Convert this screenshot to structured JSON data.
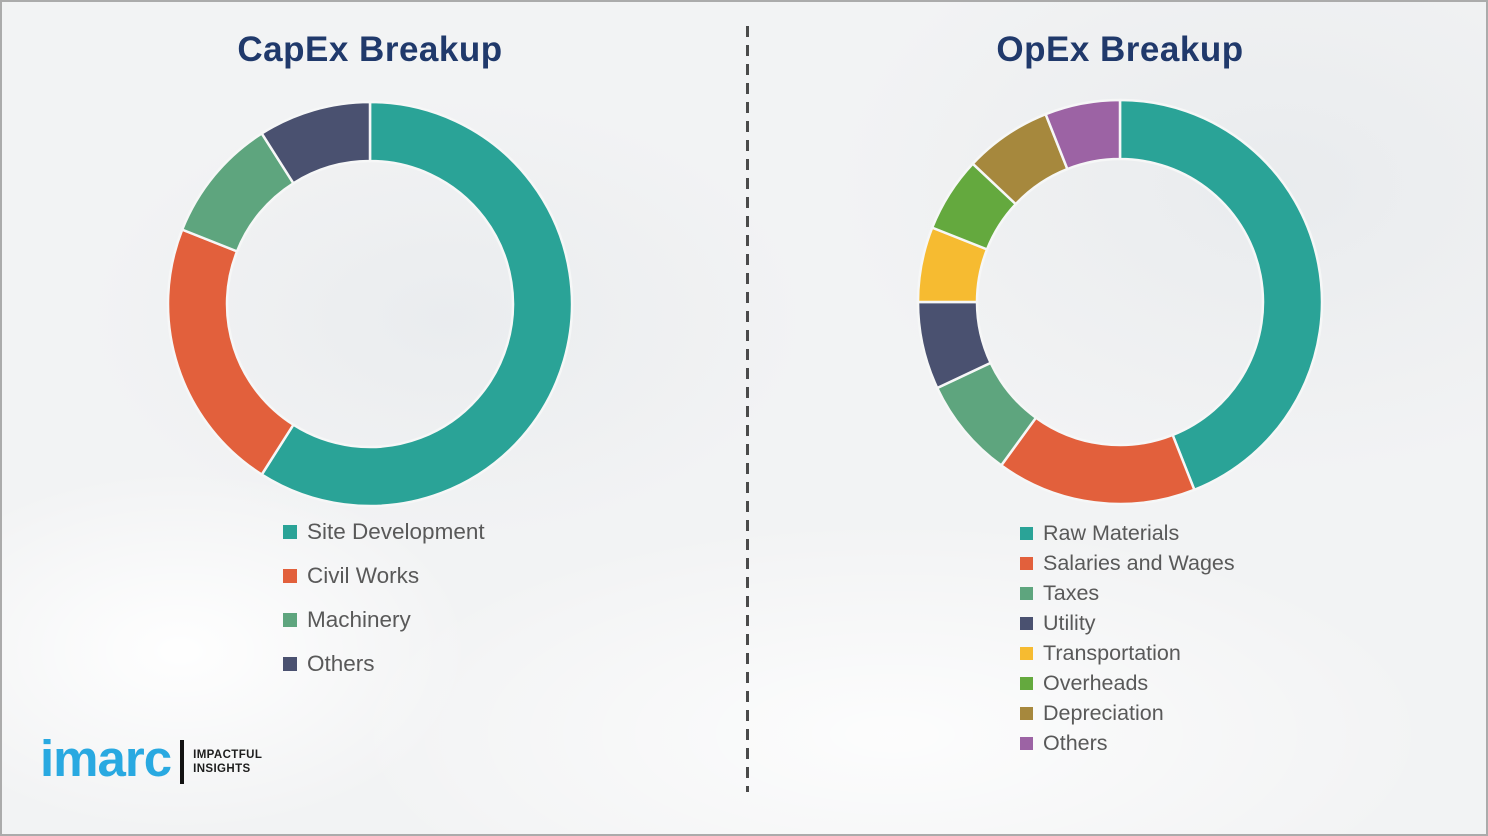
{
  "page": {
    "background_color": "#F2F3F4",
    "border_color": "#ABABAB",
    "divider_color": "#4A4A4A",
    "title_color": "#20396B",
    "legend_text_color": "#595959"
  },
  "chart_data": [
    {
      "type": "pie",
      "subtype": "donut",
      "title": "CapEx Breakup",
      "direction": "clockwise",
      "start_angle_deg": 0,
      "legend_position": "below",
      "segments": [
        {
          "label": "Site Development",
          "value": 59,
          "color": "#2AA397"
        },
        {
          "label": "Civil Works",
          "value": 22,
          "color": "#E2603C"
        },
        {
          "label": "Machinery",
          "value": 10,
          "color": "#5EA57E"
        },
        {
          "label": "Others",
          "value": 9,
          "color": "#4A5170"
        }
      ]
    },
    {
      "type": "pie",
      "subtype": "donut",
      "title": "OpEx Breakup",
      "direction": "clockwise",
      "start_angle_deg": 0,
      "legend_position": "below",
      "segments": [
        {
          "label": "Raw Materials",
          "value": 44,
          "color": "#2AA397"
        },
        {
          "label": "Salaries and Wages",
          "value": 16,
          "color": "#E2603C"
        },
        {
          "label": "Taxes",
          "value": 8,
          "color": "#5EA57E"
        },
        {
          "label": "Utility",
          "value": 7,
          "color": "#4A5170"
        },
        {
          "label": "Transportation",
          "value": 6,
          "color": "#F6BB31"
        },
        {
          "label": "Overheads",
          "value": 6,
          "color": "#64A93E"
        },
        {
          "label": "Depreciation",
          "value": 7,
          "color": "#A6883D"
        },
        {
          "label": "Others",
          "value": 6,
          "color": "#9C63A4"
        }
      ]
    }
  ],
  "logo": {
    "brand": "imarc",
    "brand_color": "#29A9E1",
    "tagline_line1": "IMPACTFUL",
    "tagline_line2": "INSIGHTS"
  }
}
